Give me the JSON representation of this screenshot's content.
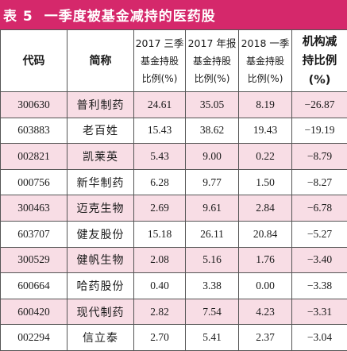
{
  "title": {
    "number": "表 5",
    "text": "一季度被基金减持的医药股"
  },
  "columns": [
    {
      "lines": [
        "代码"
      ]
    },
    {
      "lines": [
        "简称"
      ]
    },
    {
      "lines": [
        "2017 三季",
        "基金持股",
        "比例(%)"
      ]
    },
    {
      "lines": [
        "2017 年报",
        "基金持股",
        "比例(%)"
      ]
    },
    {
      "lines": [
        "2018 一季",
        "基金持股",
        "比例(%)"
      ]
    },
    {
      "lines": [
        "机构减",
        "持比例",
        "(%)"
      ]
    }
  ],
  "rows": [
    {
      "code": "300630",
      "name": "普利制药",
      "q3_2017": "24.61",
      "annual_2017": "35.05",
      "q1_2018": "8.19",
      "change": "−26.87",
      "shaded": true
    },
    {
      "code": "603883",
      "name": "老百姓",
      "q3_2017": "15.43",
      "annual_2017": "38.62",
      "q1_2018": "19.43",
      "change": "−19.19",
      "shaded": false
    },
    {
      "code": "002821",
      "name": "凯莱英",
      "q3_2017": "5.43",
      "annual_2017": "9.00",
      "q1_2018": "0.22",
      "change": "−8.79",
      "shaded": true
    },
    {
      "code": "000756",
      "name": "新华制药",
      "q3_2017": "6.28",
      "annual_2017": "9.77",
      "q1_2018": "1.50",
      "change": "−8.27",
      "shaded": false
    },
    {
      "code": "300463",
      "name": "迈克生物",
      "q3_2017": "2.69",
      "annual_2017": "9.61",
      "q1_2018": "2.84",
      "change": "−6.78",
      "shaded": true
    },
    {
      "code": "603707",
      "name": "健友股份",
      "q3_2017": "15.18",
      "annual_2017": "26.11",
      "q1_2018": "20.84",
      "change": "−5.27",
      "shaded": false
    },
    {
      "code": "300529",
      "name": "健帆生物",
      "q3_2017": "2.08",
      "annual_2017": "5.16",
      "q1_2018": "1.76",
      "change": "−3.40",
      "shaded": true
    },
    {
      "code": "600664",
      "name": "哈药股份",
      "q3_2017": "0.40",
      "annual_2017": "3.38",
      "q1_2018": "0.00",
      "change": "−3.38",
      "shaded": false
    },
    {
      "code": "600420",
      "name": "现代制药",
      "q3_2017": "2.82",
      "annual_2017": "7.54",
      "q1_2018": "4.23",
      "change": "−3.31",
      "shaded": true
    },
    {
      "code": "002294",
      "name": "信立泰",
      "q3_2017": "2.70",
      "annual_2017": "5.41",
      "q1_2018": "2.37",
      "change": "−3.04",
      "shaded": false
    }
  ],
  "colors": {
    "title_bg": "#d5286b",
    "title_text": "#ffffff",
    "row_shade": "#f8dde5",
    "border": "#555555"
  }
}
